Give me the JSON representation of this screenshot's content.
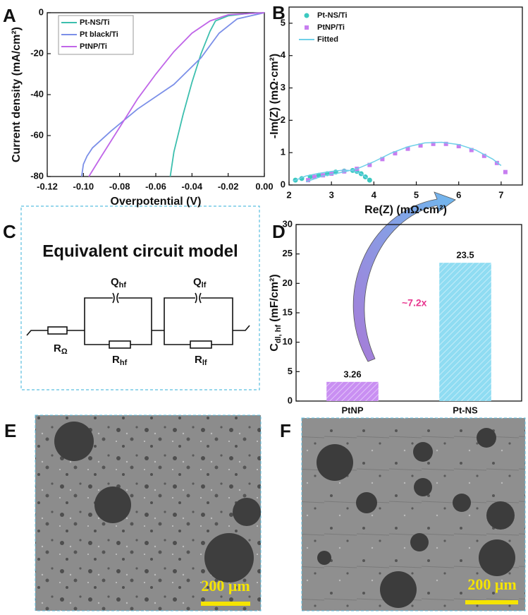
{
  "panel_labels": [
    "A",
    "B",
    "C",
    "D",
    "E",
    "F"
  ],
  "chart_data": [
    {
      "type": "line",
      "x_label": "Overpotential (V)",
      "y_label": "Current density (mA/cm²)",
      "xlim": [
        -0.12,
        0.0
      ],
      "ylim": [
        -80,
        0
      ],
      "xticks": [
        -0.12,
        {
          "value": -0.1,
          "label": "-0.10"
        },
        -0.08,
        -0.06,
        -0.04,
        -0.02,
        {
          "value": 0,
          "label": "0.00"
        }
      ],
      "yticks": [
        -80,
        -60,
        -40,
        -20,
        0
      ],
      "legend": "upper left",
      "series": [
        {
          "name": "Pt-NS/Ti",
          "color": "#3cbfae",
          "x": [
            -0.052,
            -0.05,
            -0.045,
            -0.04,
            -0.035,
            -0.03,
            -0.027,
            -0.02,
            -0.01,
            0
          ],
          "values": [
            -80,
            -68,
            -50,
            -34,
            -20,
            -9,
            -4,
            -1.5,
            -0.5,
            0
          ]
        },
        {
          "name": "Pt black/Ti",
          "color": "#7b8fe8",
          "x": [
            -0.101,
            -0.1,
            -0.098,
            -0.095,
            -0.09,
            -0.085,
            -0.07,
            -0.05,
            -0.035,
            -0.025,
            -0.015,
            0
          ],
          "values": [
            -80,
            -74,
            -70,
            -66,
            -62,
            -58,
            -47,
            -35,
            -22,
            -10,
            -3,
            0
          ]
        },
        {
          "name": "PtNP/Ti",
          "color": "#c066e8",
          "x": [
            -0.097,
            -0.09,
            -0.08,
            -0.07,
            -0.06,
            -0.05,
            -0.04,
            -0.03,
            -0.02,
            0
          ],
          "values": [
            -80,
            -70,
            -56,
            -42,
            -30,
            -19,
            -10,
            -4,
            -1,
            0
          ]
        }
      ]
    },
    {
      "type": "scatter",
      "x_label": "Re(Z) (mΩ·cm²)",
      "y_label": "-Im(Z) (mΩ·cm²)",
      "xlim": [
        2,
        7.5
      ],
      "ylim": [
        0,
        5.5
      ],
      "xticks": [
        2,
        3,
        4,
        5,
        6,
        7
      ],
      "yticks": [
        0,
        1,
        2,
        3,
        4,
        5
      ],
      "legend": "upper left",
      "series": [
        {
          "name": "Pt-NS/Ti",
          "color": "#3cc9c0",
          "mode": "circle",
          "x": [
            2.15,
            2.3,
            2.5,
            2.7,
            2.9,
            3.1,
            3.3,
            3.5,
            3.6,
            3.7,
            3.8,
            3.9
          ],
          "values": [
            0.15,
            0.2,
            0.25,
            0.3,
            0.35,
            0.4,
            0.43,
            0.45,
            0.42,
            0.35,
            0.25,
            0.15
          ]
        },
        {
          "name": "PtNP/Ti",
          "color": "#c77ef0",
          "mode": "square",
          "x": [
            2.45,
            2.6,
            2.8,
            3.0,
            3.3,
            3.6,
            3.9,
            4.2,
            4.5,
            4.8,
            5.1,
            5.4,
            5.7,
            6.0,
            6.3,
            6.6,
            6.9,
            7.1
          ],
          "values": [
            0.15,
            0.25,
            0.3,
            0.35,
            0.42,
            0.5,
            0.62,
            0.8,
            0.98,
            1.12,
            1.22,
            1.27,
            1.27,
            1.2,
            1.08,
            0.9,
            0.68,
            0.4
          ]
        },
        {
          "name": "Fitted",
          "color": "#6fd0e8",
          "mode": "line",
          "x": [
            2.1,
            2.4,
            2.7,
            3.0,
            3.3,
            3.5,
            3.7,
            3.85,
            null,
            2.4,
            2.8,
            3.2,
            3.6,
            4.0,
            4.4,
            4.8,
            5.2,
            5.6,
            6.0,
            6.4,
            6.8,
            7.0
          ],
          "values": [
            0.12,
            0.28,
            0.36,
            0.42,
            0.46,
            0.44,
            0.35,
            0.2,
            null,
            0.1,
            0.28,
            0.38,
            0.5,
            0.72,
            0.98,
            1.18,
            1.3,
            1.32,
            1.25,
            1.08,
            0.8,
            0.6
          ]
        }
      ]
    },
    {
      "type": "bar",
      "y_label": [
        "C",
        "dl, hf",
        "(mF/cm²)"
      ],
      "categories": [
        "PtNP",
        "Pt-NS"
      ],
      "values": [
        3.26,
        23.5
      ],
      "colors": [
        "#c98ff2",
        "#8fdcf2"
      ],
      "ylim": [
        0,
        30
      ],
      "yticks": [
        0,
        5,
        10,
        15,
        20,
        25,
        30
      ],
      "annotation": "~7.2x"
    }
  ],
  "circuit": {
    "title": "Equivalent circuit model",
    "components": [
      [
        "R",
        "Ω"
      ],
      [
        "Q",
        "hf"
      ],
      [
        "R",
        "hf"
      ],
      [
        "Q",
        "lf"
      ],
      [
        "R",
        "lf"
      ]
    ]
  },
  "micrographs": [
    {
      "scale_bar": "200 μm"
    },
    {
      "scale_bar": "200 μm"
    }
  ]
}
